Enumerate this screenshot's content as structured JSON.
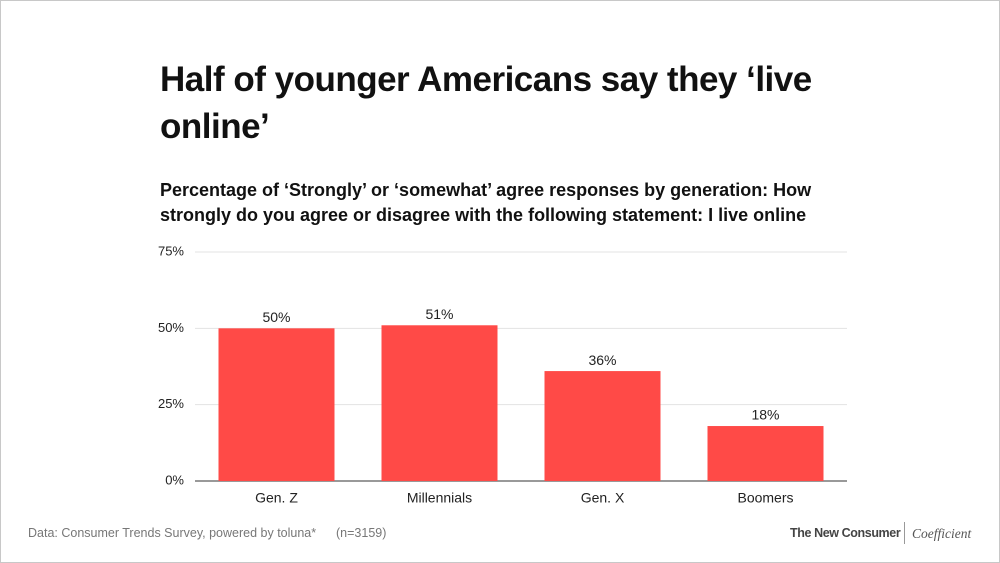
{
  "chart_data": {
    "type": "bar",
    "title": "Half of younger Americans say they ‘live online’",
    "subtitle": "Percentage of ‘Strongly’ or ‘somewhat’ agree responses by generation: How strongly do you agree or disagree with the following statement: I live online",
    "categories": [
      "Gen. Z",
      "Millennials",
      "Gen. X",
      "Boomers"
    ],
    "values": [
      50,
      51,
      36,
      18
    ],
    "value_labels": [
      "50%",
      "51%",
      "36%",
      "18%"
    ],
    "color": "#ff4a47",
    "ylim": [
      0,
      75
    ],
    "yticks": [
      {
        "value": 0,
        "label": "0%"
      },
      {
        "value": 25,
        "label": "25%"
      },
      {
        "value": 50,
        "label": "50%"
      },
      {
        "value": 75,
        "label": "75%"
      }
    ],
    "grid": true,
    "source": "Data: Consumer Trends Survey, powered by toluna*",
    "sample": "(n=3159)",
    "brand": "The New Consumer",
    "partner": "Coefficient"
  }
}
